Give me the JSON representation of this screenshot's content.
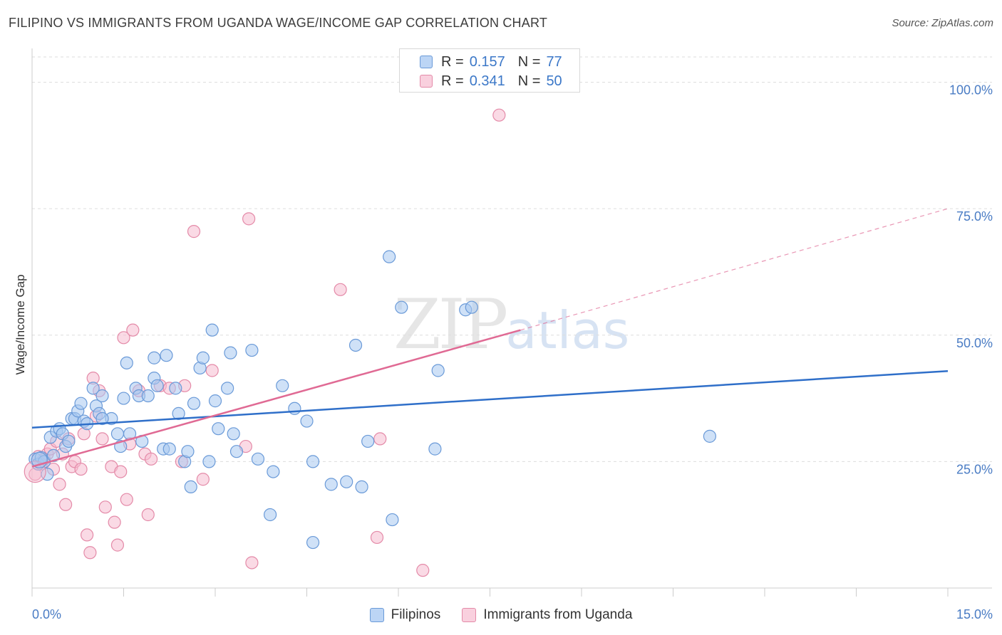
{
  "title": "FILIPINO VS IMMIGRANTS FROM UGANDA WAGE/INCOME GAP CORRELATION CHART",
  "source": "Source: ZipAtlas.com",
  "watermark": {
    "zip": "ZIP",
    "atlas": "atlas"
  },
  "legend_top": {
    "rows": [
      {
        "r_label": "R =",
        "r_value": "0.157",
        "n_label": "N =",
        "n_value": "77"
      },
      {
        "r_label": "R =",
        "r_value": "0.341",
        "n_label": "N =",
        "n_value": "50"
      }
    ]
  },
  "colors": {
    "blue_fill": "#a8c8f0",
    "blue_stroke": "#6a9ad8",
    "blue_line": "#2f6fc9",
    "pink_fill": "#f6bcd0",
    "pink_stroke": "#e48aa8",
    "pink_line": "#e06a94",
    "grid": "#dddddd",
    "tick_text": "#4a7cc4"
  },
  "chart_data": {
    "type": "scatter",
    "title": "FILIPINO VS IMMIGRANTS FROM UGANDA WAGE/INCOME GAP CORRELATION CHART",
    "xlabel": "",
    "ylabel": "Wage/Income Gap",
    "xlim": [
      0,
      15
    ],
    "ylim": [
      0,
      105
    ],
    "x_ticks_labels": [
      "0.0%",
      "15.0%"
    ],
    "y_ticks": [
      25,
      50,
      75,
      100
    ],
    "y_ticks_labels": [
      "25.0%",
      "50.0%",
      "75.0%",
      "100.0%"
    ],
    "grid": true,
    "legend_position": "bottom",
    "series": [
      {
        "name": "Filipinos",
        "color": "#a8c8f0",
        "r": 0.157,
        "n": 77,
        "trend": {
          "x": [
            0,
            15
          ],
          "y": [
            31.7,
            42.9
          ],
          "dashed_extension": false
        },
        "points": [
          [
            0.05,
            25.5
          ],
          [
            0.1,
            24.5
          ],
          [
            0.15,
            25.8
          ],
          [
            0.2,
            25.0
          ],
          [
            0.25,
            22.5
          ],
          [
            0.3,
            29.8
          ],
          [
            0.35,
            26.2
          ],
          [
            0.4,
            31.0
          ],
          [
            0.45,
            31.5
          ],
          [
            0.5,
            30.5
          ],
          [
            0.55,
            28.0
          ],
          [
            0.6,
            29.0
          ],
          [
            0.65,
            33.5
          ],
          [
            0.7,
            33.5
          ],
          [
            0.75,
            35.0
          ],
          [
            0.8,
            36.5
          ],
          [
            0.85,
            33.0
          ],
          [
            0.9,
            32.5
          ],
          [
            1.0,
            39.5
          ],
          [
            1.05,
            36.0
          ],
          [
            1.1,
            34.5
          ],
          [
            1.15,
            38.0
          ],
          [
            1.3,
            33.5
          ],
          [
            1.4,
            30.5
          ],
          [
            1.45,
            28.0
          ],
          [
            1.5,
            37.5
          ],
          [
            1.55,
            44.5
          ],
          [
            1.6,
            30.5
          ],
          [
            1.7,
            39.5
          ],
          [
            1.75,
            38.0
          ],
          [
            1.8,
            29.0
          ],
          [
            1.9,
            38.0
          ],
          [
            2.0,
            45.5
          ],
          [
            2.0,
            41.5
          ],
          [
            2.05,
            40.0
          ],
          [
            2.15,
            27.5
          ],
          [
            2.2,
            46.0
          ],
          [
            2.25,
            27.5
          ],
          [
            2.35,
            39.5
          ],
          [
            2.4,
            34.5
          ],
          [
            2.5,
            25.0
          ],
          [
            2.55,
            27.0
          ],
          [
            2.6,
            20.0
          ],
          [
            2.65,
            36.5
          ],
          [
            2.75,
            43.5
          ],
          [
            2.8,
            45.5
          ],
          [
            2.9,
            25.0
          ],
          [
            2.95,
            51.0
          ],
          [
            3.0,
            37.0
          ],
          [
            3.05,
            31.5
          ],
          [
            3.2,
            39.5
          ],
          [
            3.25,
            46.5
          ],
          [
            3.3,
            30.5
          ],
          [
            3.35,
            27.0
          ],
          [
            3.6,
            47.0
          ],
          [
            3.7,
            25.5
          ],
          [
            3.9,
            14.5
          ],
          [
            3.95,
            23.0
          ],
          [
            4.1,
            40.0
          ],
          [
            4.3,
            35.5
          ],
          [
            4.5,
            33.0
          ],
          [
            4.6,
            9.0
          ],
          [
            4.6,
            25.0
          ],
          [
            4.9,
            20.5
          ],
          [
            5.15,
            21.0
          ],
          [
            5.3,
            48.0
          ],
          [
            5.4,
            20.0
          ],
          [
            5.5,
            29.0
          ],
          [
            5.85,
            65.5
          ],
          [
            5.9,
            13.5
          ],
          [
            6.05,
            55.5
          ],
          [
            6.6,
            27.5
          ],
          [
            6.65,
            43.0
          ],
          [
            7.1,
            55.0
          ],
          [
            7.2,
            55.5
          ],
          [
            11.1,
            30.0
          ],
          [
            1.15,
            33.5
          ]
        ]
      },
      {
        "name": "Immigrants from Uganda",
        "color": "#f6bcd0",
        "r": 0.341,
        "n": 50,
        "trend": {
          "x": [
            0,
            8.0
          ],
          "y": [
            24.0,
            51.0
          ],
          "dashed_extension": true,
          "dashed_to": [
            15,
            75.0
          ]
        },
        "points": [
          [
            0.05,
            22.5
          ],
          [
            0.1,
            26.0
          ],
          [
            0.15,
            24.5
          ],
          [
            0.2,
            25.5
          ],
          [
            0.25,
            26.5
          ],
          [
            0.3,
            27.5
          ],
          [
            0.35,
            23.5
          ],
          [
            0.4,
            29.0
          ],
          [
            0.45,
            20.5
          ],
          [
            0.5,
            26.5
          ],
          [
            0.55,
            16.5
          ],
          [
            0.6,
            29.5
          ],
          [
            0.65,
            24.0
          ],
          [
            0.7,
            25.0
          ],
          [
            0.8,
            23.5
          ],
          [
            0.85,
            30.5
          ],
          [
            0.9,
            10.5
          ],
          [
            0.95,
            7.0
          ],
          [
            1.0,
            41.5
          ],
          [
            1.05,
            34.0
          ],
          [
            1.1,
            39.0
          ],
          [
            1.15,
            29.5
          ],
          [
            1.2,
            16.0
          ],
          [
            1.3,
            24.0
          ],
          [
            1.35,
            13.0
          ],
          [
            1.4,
            8.5
          ],
          [
            1.45,
            23.0
          ],
          [
            1.5,
            49.5
          ],
          [
            1.55,
            17.5
          ],
          [
            1.6,
            28.5
          ],
          [
            1.65,
            51.0
          ],
          [
            1.75,
            39.0
          ],
          [
            1.85,
            26.5
          ],
          [
            1.9,
            14.5
          ],
          [
            1.95,
            25.5
          ],
          [
            2.1,
            40.0
          ],
          [
            2.25,
            39.5
          ],
          [
            2.45,
            25.0
          ],
          [
            2.5,
            40.0
          ],
          [
            2.65,
            70.5
          ],
          [
            2.8,
            21.5
          ],
          [
            2.95,
            43.0
          ],
          [
            3.5,
            28.0
          ],
          [
            3.55,
            73.0
          ],
          [
            3.6,
            5.0
          ],
          [
            5.05,
            59.0
          ],
          [
            5.65,
            10.0
          ],
          [
            5.7,
            29.5
          ],
          [
            6.4,
            3.5
          ],
          [
            7.65,
            93.5
          ]
        ]
      }
    ]
  }
}
